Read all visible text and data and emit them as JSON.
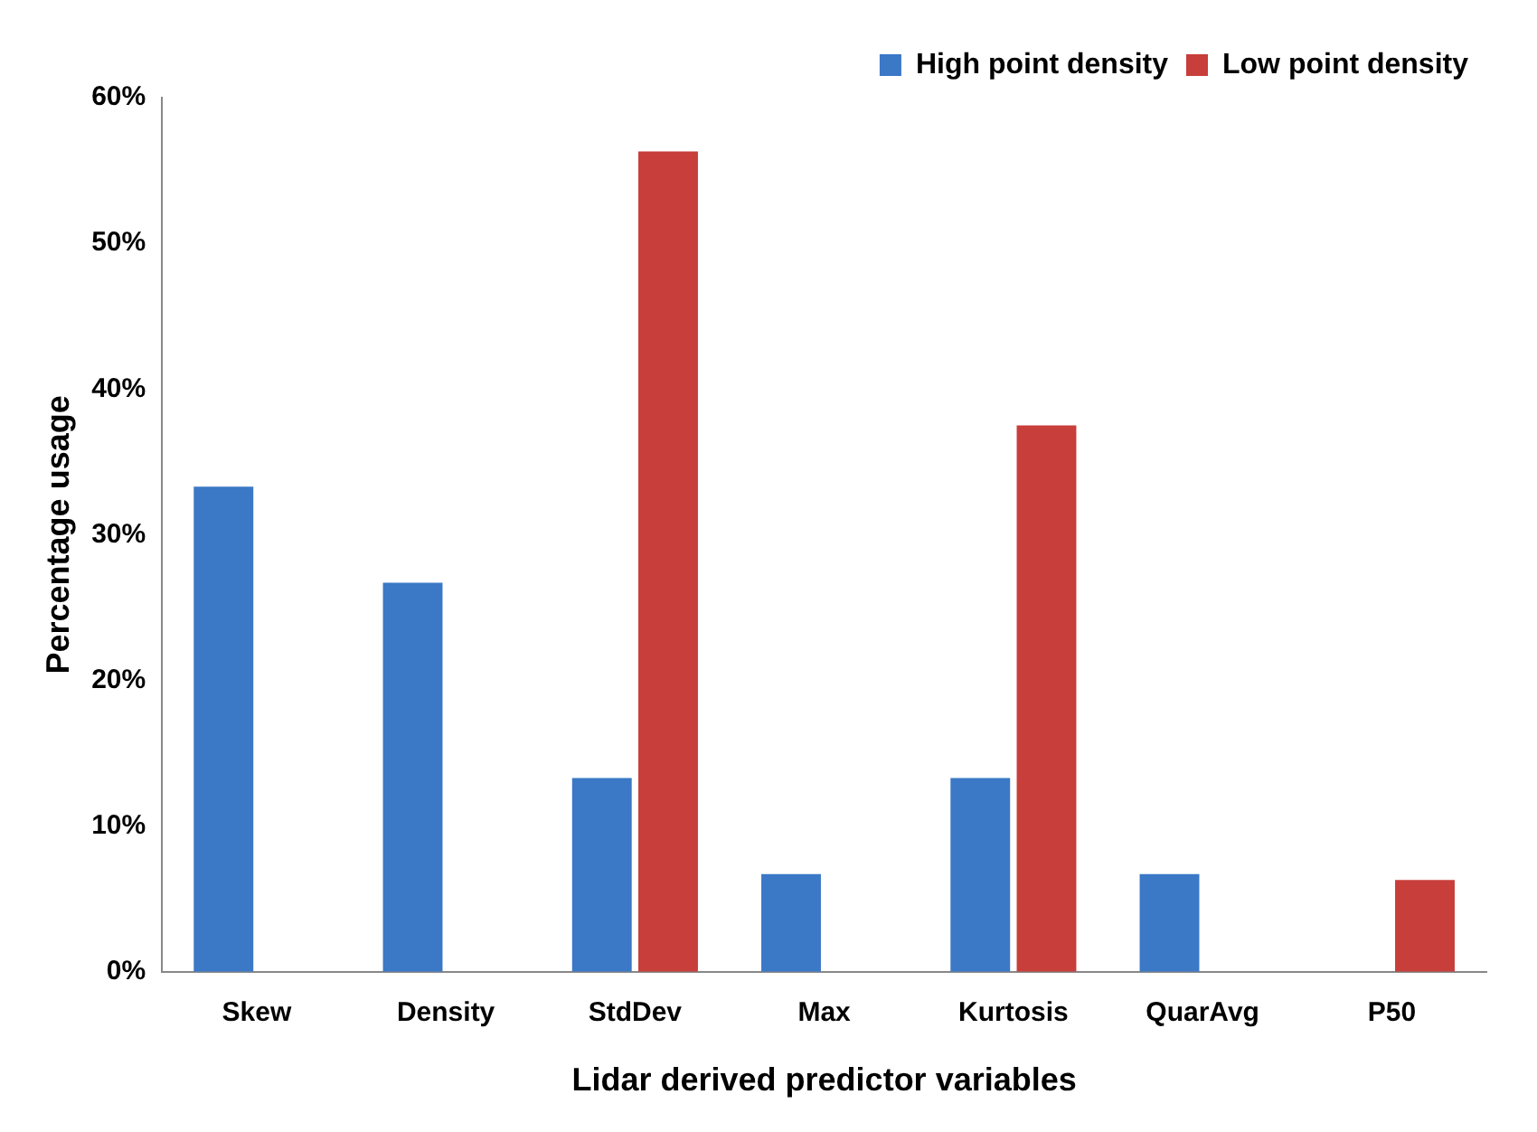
{
  "chart_data": {
    "type": "bar",
    "xlabel": "Lidar derived predictor variables",
    "ylabel": "Percentage usage",
    "categories": [
      "Skew",
      "Density",
      "StdDev",
      "Max",
      "Kurtosis",
      "QuarAvg",
      "P50"
    ],
    "series": [
      {
        "name": "High point density",
        "color": "#3b78c6",
        "values": [
          33.3,
          26.7,
          13.3,
          6.7,
          13.3,
          6.7,
          null
        ]
      },
      {
        "name": "Low point density",
        "color": "#c73e3b",
        "values": [
          null,
          null,
          56.3,
          null,
          37.5,
          null,
          6.3
        ]
      }
    ],
    "ylim": [
      0,
      60
    ],
    "yticks": [
      {
        "value": 0,
        "label": "0%"
      },
      {
        "value": 10,
        "label": "10%"
      },
      {
        "value": 20,
        "label": "20%"
      },
      {
        "value": 30,
        "label": "30%"
      },
      {
        "value": 40,
        "label": "40%"
      },
      {
        "value": 50,
        "label": "50%"
      },
      {
        "value": 60,
        "label": "60%"
      }
    ],
    "grid": false,
    "legend": "top right"
  }
}
